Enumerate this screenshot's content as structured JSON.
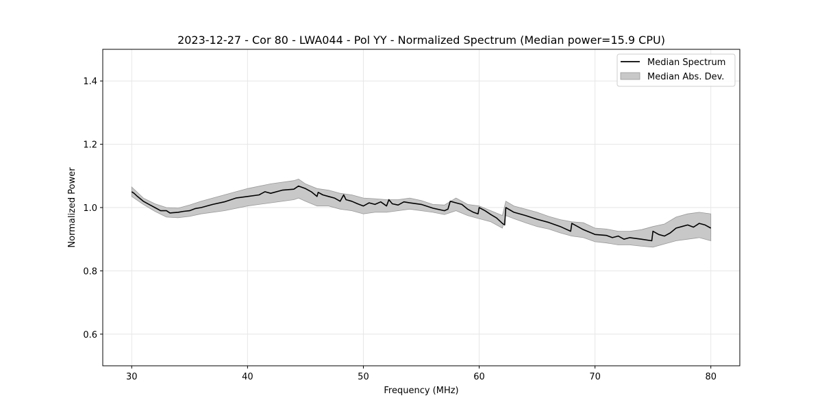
{
  "chart_data": {
    "type": "line",
    "title": "2023-12-27 - Cor 80 - LWA044 - Pol YY - Normalized Spectrum (Median power=15.9 CPU)",
    "xlabel": "Frequency (MHz)",
    "ylabel": "Normalized Power",
    "xlim": [
      27.5,
      82.5
    ],
    "ylim": [
      0.5,
      1.5
    ],
    "x_ticks": [
      30,
      40,
      50,
      60,
      70,
      80
    ],
    "y_ticks": [
      0.6,
      0.8,
      1.0,
      1.2,
      1.4
    ],
    "x_tick_labels": [
      "30",
      "40",
      "50",
      "60",
      "70",
      "80"
    ],
    "y_tick_labels": [
      "0.6",
      "0.8",
      "1.0",
      "1.2",
      "1.4"
    ],
    "grid": true,
    "legend_position": "top-right",
    "legend": {
      "median_label": "Median Spectrum",
      "mad_label": "Median Abs. Dev."
    },
    "colors": {
      "line": "#000000",
      "band": "#c8c8c8",
      "band_edge": "#999999",
      "grid": "#e6e6e6"
    },
    "series": [
      {
        "name": "Median Spectrum",
        "x": [
          30.0,
          30.2,
          30.5,
          31.0,
          31.5,
          32.0,
          32.5,
          33.0,
          33.3,
          34.0,
          34.5,
          35.0,
          35.5,
          36.0,
          37.0,
          38.0,
          39.0,
          40.0,
          41.0,
          41.5,
          42.0,
          43.0,
          44.0,
          44.4,
          45.0,
          45.5,
          46.0,
          46.1,
          46.5,
          47.0,
          47.5,
          48.0,
          48.3,
          48.5,
          49.0,
          49.5,
          50.0,
          50.5,
          51.0,
          51.5,
          52.0,
          52.2,
          52.5,
          53.0,
          53.5,
          54.0,
          55.0,
          56.0,
          57.0,
          57.3,
          57.5,
          58.0,
          58.5,
          59.0,
          59.5,
          59.9,
          60.0,
          60.5,
          61.0,
          61.5,
          62.0,
          62.2,
          62.3,
          63.0,
          64.0,
          65.0,
          66.0,
          67.0,
          67.9,
          68.0,
          69.0,
          70.0,
          71.0,
          71.5,
          72.0,
          72.5,
          73.0,
          74.0,
          74.9,
          75.0,
          75.5,
          76.0,
          76.5,
          77.0,
          77.5,
          78.0,
          78.5,
          79.0,
          79.5,
          80.0
        ],
        "values": [
          1.05,
          1.045,
          1.035,
          1.02,
          1.01,
          1.0,
          0.99,
          0.99,
          0.983,
          0.985,
          0.988,
          0.99,
          0.997,
          1.0,
          1.01,
          1.018,
          1.03,
          1.035,
          1.04,
          1.05,
          1.045,
          1.055,
          1.058,
          1.068,
          1.06,
          1.05,
          1.035,
          1.048,
          1.04,
          1.035,
          1.03,
          1.02,
          1.04,
          1.025,
          1.02,
          1.012,
          1.005,
          1.015,
          1.01,
          1.018,
          1.005,
          1.025,
          1.012,
          1.008,
          1.018,
          1.015,
          1.01,
          0.998,
          0.99,
          0.995,
          1.02,
          1.015,
          1.01,
          0.995,
          0.985,
          0.98,
          1.0,
          0.99,
          0.978,
          0.967,
          0.95,
          0.945,
          1.0,
          0.985,
          0.975,
          0.963,
          0.953,
          0.94,
          0.925,
          0.95,
          0.93,
          0.915,
          0.912,
          0.905,
          0.91,
          0.9,
          0.905,
          0.9,
          0.895,
          0.925,
          0.915,
          0.91,
          0.92,
          0.935,
          0.94,
          0.945,
          0.938,
          0.95,
          0.945,
          0.935
        ]
      },
      {
        "name": "Median Abs. Dev.",
        "x": [
          30.0,
          31.0,
          32.0,
          33.0,
          34.0,
          35.0,
          36.0,
          38.0,
          40.0,
          42.0,
          44.0,
          44.4,
          45.0,
          46.0,
          47.0,
          48.0,
          49.0,
          50.0,
          51.0,
          52.0,
          53.0,
          54.0,
          55.0,
          56.0,
          57.0,
          58.0,
          59.0,
          60.0,
          61.0,
          62.0,
          62.3,
          63.0,
          64.0,
          65.0,
          66.0,
          67.0,
          68.0,
          69.0,
          70.0,
          71.0,
          72.0,
          73.0,
          74.0,
          75.0,
          76.0,
          77.0,
          78.0,
          79.0,
          80.0
        ],
        "upper": [
          1.065,
          1.03,
          1.012,
          1.0,
          0.998,
          1.008,
          1.02,
          1.04,
          1.06,
          1.075,
          1.085,
          1.09,
          1.075,
          1.06,
          1.055,
          1.045,
          1.04,
          1.03,
          1.028,
          1.025,
          1.025,
          1.03,
          1.022,
          1.01,
          1.008,
          1.03,
          1.01,
          1.005,
          0.99,
          0.975,
          1.02,
          1.005,
          0.995,
          0.985,
          0.972,
          0.962,
          0.955,
          0.952,
          0.935,
          0.932,
          0.925,
          0.925,
          0.93,
          0.94,
          0.948,
          0.97,
          0.98,
          0.985,
          0.98
        ],
        "lower": [
          1.035,
          1.01,
          0.988,
          0.97,
          0.968,
          0.972,
          0.98,
          0.99,
          1.005,
          1.015,
          1.025,
          1.03,
          1.02,
          1.005,
          1.005,
          0.995,
          0.99,
          0.98,
          0.985,
          0.985,
          0.99,
          0.995,
          0.99,
          0.985,
          0.978,
          0.99,
          0.975,
          0.965,
          0.955,
          0.935,
          0.975,
          0.965,
          0.952,
          0.94,
          0.932,
          0.92,
          0.91,
          0.905,
          0.892,
          0.888,
          0.882,
          0.882,
          0.878,
          0.875,
          0.885,
          0.895,
          0.9,
          0.905,
          0.895
        ]
      }
    ]
  }
}
